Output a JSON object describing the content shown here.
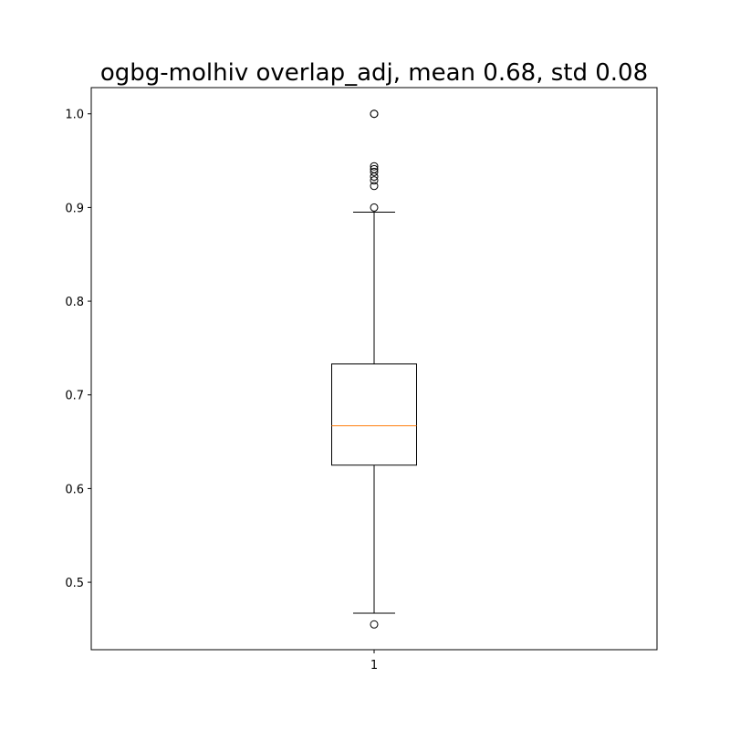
{
  "chart_data": {
    "type": "box",
    "title": "ogbg-molhiv overlap_adj, mean 0.68, std 0.08",
    "xlabel": "",
    "ylabel": "",
    "categories": [
      "1"
    ],
    "ylim": [
      0.428,
      1.028
    ],
    "yticks": [
      0.5,
      0.6,
      0.7,
      0.8,
      0.9,
      1.0
    ],
    "ytick_labels": [
      "0.5",
      "0.6",
      "0.7",
      "0.8",
      "0.9",
      "1.0"
    ],
    "grid": false,
    "legend": "none",
    "boxes": [
      {
        "category": "1",
        "whisker_low": 0.467,
        "q1": 0.625,
        "median": 0.667,
        "q3": 0.733,
        "whisker_high": 0.895,
        "outliers": [
          0.455,
          0.9,
          0.923,
          0.929,
          0.933,
          0.938,
          0.941,
          0.944,
          1.0,
          1.0
        ]
      }
    ],
    "colors": {
      "box": "#000000",
      "median": "#ff7f0e",
      "outlier": "#000000"
    }
  }
}
